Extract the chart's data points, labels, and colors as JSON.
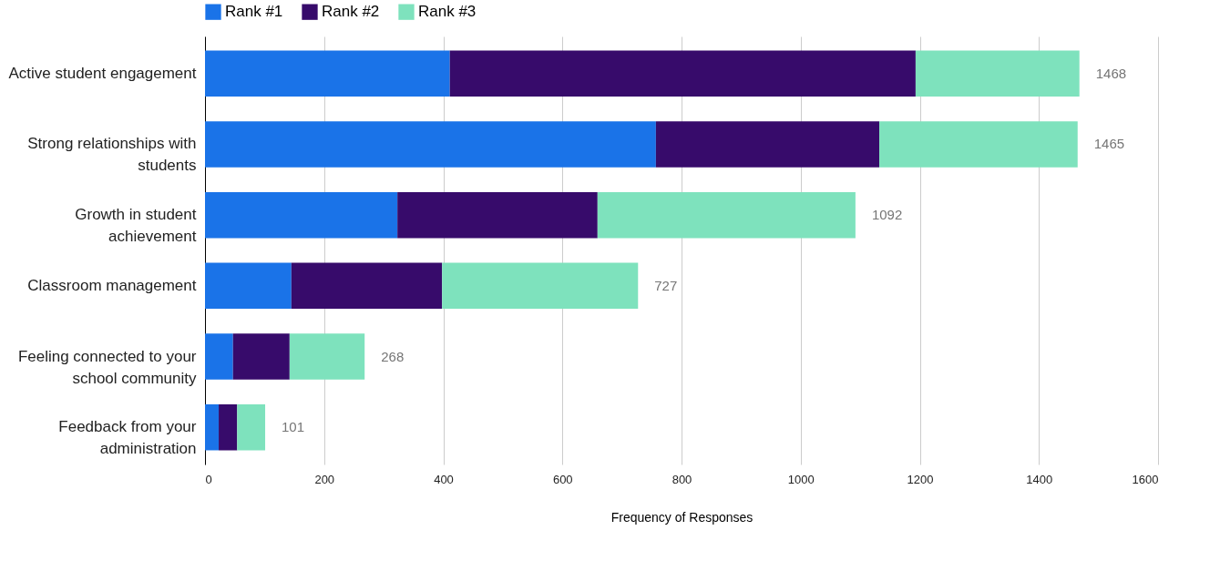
{
  "chart_data": {
    "type": "bar",
    "orientation": "horizontal",
    "stacked": true,
    "xlabel": "Frequency of Responses",
    "categories": [
      "Active student engagement",
      "Strong relationships with students",
      "Growth in student achievement",
      "Classroom management",
      "Feeling connected to your school community",
      "Feedback from your administration"
    ],
    "series": [
      {
        "name": "Rank #1",
        "color": "#1a73e8",
        "values": [
          411,
          757,
          323,
          145,
          47,
          23
        ]
      },
      {
        "name": "Rank #2",
        "color": "#370b6b",
        "values": [
          782,
          375,
          336,
          253,
          95,
          31
        ]
      },
      {
        "name": "Rank #3",
        "color": "#7ee2bd",
        "values": [
          275,
          333,
          433,
          329,
          126,
          47
        ]
      }
    ],
    "totals": [
      "1468",
      "1465",
      "1092",
      "727",
      "268",
      "101"
    ],
    "xlim": [
      0,
      1600
    ],
    "xticks": [
      0,
      200,
      400,
      600,
      800,
      1000,
      1200,
      1400,
      1600
    ],
    "grid": "x",
    "legend": "top"
  }
}
